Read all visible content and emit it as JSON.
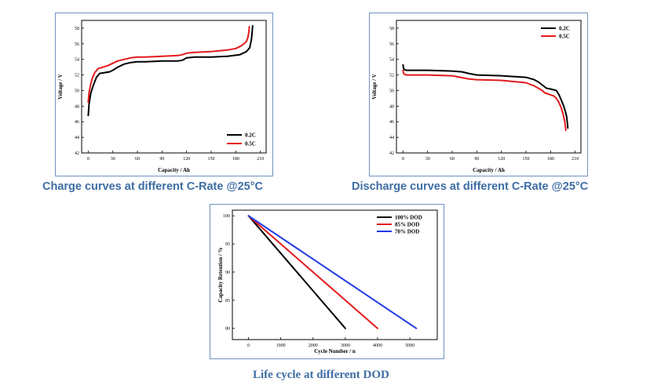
{
  "captions": {
    "charge": "Charge curves at different C-Rate @25°C",
    "discharge": "Discharge curves at different C-Rate @25°C",
    "life": "Life cycle at different DOD"
  },
  "chart_data": [
    {
      "id": "charge",
      "type": "line",
      "title": "",
      "xlabel": "Capacity / Ah",
      "ylabel": "Voltage / V",
      "xlim": [
        -8,
        217
      ],
      "ylim": [
        42,
        59
      ],
      "xticks": [
        0,
        30,
        60,
        90,
        120,
        150,
        180,
        210
      ],
      "yticks": [
        42,
        44,
        46,
        48,
        50,
        52,
        54,
        56,
        58
      ],
      "legend_position": "bottom-right",
      "series": [
        {
          "name": "0.2C",
          "color": "#000000",
          "x": [
            0,
            1,
            3,
            6,
            10,
            14,
            20,
            26,
            30,
            36,
            44,
            52,
            60,
            70,
            90,
            110,
            115,
            120,
            130,
            150,
            170,
            185,
            193,
            197,
            199,
            200,
            200.5
          ],
          "y": [
            46.8,
            48.2,
            49.6,
            50.6,
            51.7,
            52.2,
            52.3,
            52.4,
            52.6,
            53.0,
            53.4,
            53.6,
            53.7,
            53.7,
            53.8,
            53.8,
            53.9,
            54.2,
            54.3,
            54.3,
            54.4,
            54.6,
            55.0,
            55.5,
            56.5,
            57.5,
            58.3
          ]
        },
        {
          "name": "0.5C",
          "color": "#e31a1c",
          "x": [
            0,
            1,
            3,
            5,
            8,
            12,
            18,
            24,
            30,
            36,
            44,
            52,
            60,
            70,
            90,
            110,
            115,
            120,
            130,
            150,
            170,
            180,
            186,
            190,
            193,
            195,
            196,
            196.5
          ],
          "y": [
            48.5,
            49.7,
            50.8,
            51.6,
            52.3,
            52.8,
            53.0,
            53.2,
            53.5,
            53.8,
            54.0,
            54.2,
            54.3,
            54.3,
            54.4,
            54.5,
            54.6,
            54.8,
            54.9,
            55.0,
            55.2,
            55.4,
            55.7,
            56.0,
            56.3,
            56.9,
            57.6,
            58.2
          ]
        }
      ]
    },
    {
      "id": "discharge",
      "type": "line",
      "title": "",
      "xlabel": "Capacity / Ah",
      "ylabel": "Voltage / V",
      "xlim": [
        -8,
        217
      ],
      "ylim": [
        42,
        59
      ],
      "xticks": [
        0,
        30,
        60,
        90,
        120,
        150,
        180,
        210
      ],
      "yticks": [
        42,
        44,
        46,
        48,
        50,
        52,
        54,
        56,
        58
      ],
      "legend_position": "top-right",
      "series": [
        {
          "name": "0.2C",
          "color": "#000000",
          "x": [
            0,
            0.5,
            1.5,
            4,
            10,
            30,
            60,
            72,
            80,
            90,
            120,
            150,
            160,
            165,
            170,
            175,
            180,
            187,
            190,
            193,
            196,
            198,
            199.5,
            200.5,
            201
          ],
          "y": [
            53.3,
            52.9,
            52.7,
            52.6,
            52.6,
            52.6,
            52.5,
            52.4,
            52.2,
            52.0,
            51.9,
            51.7,
            51.4,
            51.1,
            50.7,
            50.3,
            50.2,
            50.0,
            49.5,
            48.8,
            48.0,
            47.3,
            46.7,
            45.8,
            45.2
          ]
        },
        {
          "name": "0.5C",
          "color": "#e31a1c",
          "x": [
            0,
            0.5,
            1.5,
            4,
            10,
            30,
            60,
            70,
            80,
            90,
            120,
            150,
            160,
            165,
            170,
            173,
            176,
            181,
            184,
            187,
            190,
            193,
            195.5,
            197,
            198,
            198.5
          ],
          "y": [
            52.6,
            52.3,
            52.1,
            52.0,
            52.0,
            52.0,
            51.9,
            51.7,
            51.5,
            51.4,
            51.3,
            51.0,
            50.6,
            50.3,
            50.0,
            49.7,
            49.6,
            49.4,
            49.3,
            49.0,
            48.5,
            47.8,
            46.9,
            46.2,
            45.4,
            44.9
          ]
        }
      ]
    },
    {
      "id": "life",
      "type": "line",
      "title": "",
      "xlabel": "Cycle Number / n",
      "ylabel": "Capacity Retention / %",
      "xlim": [
        -500,
        5850
      ],
      "ylim": [
        78,
        101
      ],
      "xticks": [
        0,
        1000,
        2000,
        3000,
        4000,
        5000
      ],
      "yticks": [
        80,
        85,
        90,
        95,
        100
      ],
      "legend_position": "top-right",
      "series": [
        {
          "name": "100% DOD",
          "color": "#000000",
          "x": [
            0,
            3000
          ],
          "y": [
            100,
            80
          ]
        },
        {
          "name": "85% DOD",
          "color": "#e31a1c",
          "x": [
            0,
            4000
          ],
          "y": [
            100,
            80
          ]
        },
        {
          "name": "70% DOD",
          "color": "#1f3be6",
          "x": [
            0,
            5200
          ],
          "y": [
            100,
            80
          ]
        }
      ]
    }
  ]
}
